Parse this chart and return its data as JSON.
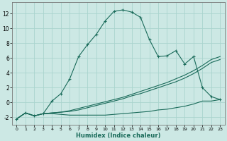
{
  "xlabel": "Humidex (Indice chaleur)",
  "xlim": [
    -0.5,
    23.5
  ],
  "ylim": [
    -3.0,
    13.5
  ],
  "yticks": [
    -2,
    0,
    2,
    4,
    6,
    8,
    10,
    12
  ],
  "bg_color": "#cce8e4",
  "grid_color": "#aad4ce",
  "line_color": "#1a6b5a",
  "main_series": [
    -2.2,
    -1.4,
    -1.8,
    -1.5,
    0.2,
    1.2,
    3.2,
    6.2,
    7.8,
    9.2,
    11.0,
    12.3,
    12.5,
    12.2,
    11.5,
    8.5,
    6.2,
    6.3,
    7.0,
    5.2,
    6.2,
    2.0,
    0.8,
    0.4
  ],
  "line2_series": [
    -2.2,
    -1.4,
    -1.8,
    -1.5,
    -1.4,
    -1.3,
    -1.1,
    -0.8,
    -0.5,
    -0.2,
    0.1,
    0.4,
    0.7,
    1.1,
    1.5,
    1.9,
    2.3,
    2.7,
    3.2,
    3.7,
    4.3,
    5.0,
    5.8,
    6.2
  ],
  "line3_series": [
    -2.2,
    -1.4,
    -1.8,
    -1.5,
    -1.4,
    -1.3,
    -1.2,
    -1.0,
    -0.7,
    -0.4,
    -0.1,
    0.2,
    0.5,
    0.9,
    1.2,
    1.6,
    2.0,
    2.4,
    2.8,
    3.3,
    3.9,
    4.6,
    5.4,
    5.8
  ],
  "line4_series": [
    -2.2,
    -1.4,
    -1.8,
    -1.5,
    -1.5,
    -1.6,
    -1.7,
    -1.7,
    -1.7,
    -1.7,
    -1.7,
    -1.6,
    -1.5,
    -1.4,
    -1.3,
    -1.2,
    -1.0,
    -0.9,
    -0.7,
    -0.5,
    -0.2,
    0.2,
    0.2,
    0.4
  ]
}
